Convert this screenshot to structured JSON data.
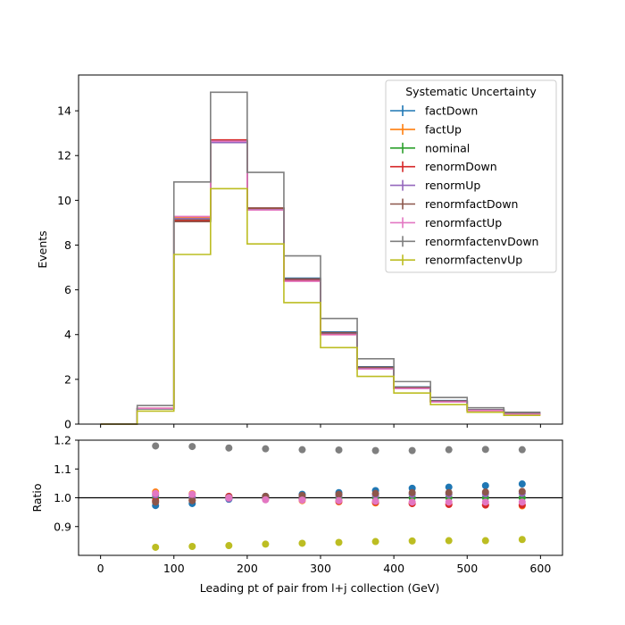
{
  "chart_data": {
    "type": "step",
    "x_bin_edges": [
      0,
      50,
      100,
      150,
      200,
      250,
      300,
      350,
      400,
      450,
      500,
      550,
      600
    ],
    "xlabel": "Leading pt of pair from l+j collection (GeV)",
    "xlim": [
      -30,
      630
    ],
    "xticks": [
      0,
      100,
      200,
      300,
      400,
      500,
      600
    ],
    "legend": {
      "title": "Systematic Uncertainty",
      "position": "upper right"
    },
    "top": {
      "ylabel": "Events",
      "ylim": [
        0,
        15.6
      ],
      "yticks": [
        0,
        2,
        4,
        6,
        8,
        10,
        12,
        14
      ],
      "series": [
        {
          "name": "factDown",
          "color": "#1f77b4",
          "values": [
            0,
            0.68,
            9.05,
            12.6,
            9.62,
            6.52,
            4.12,
            2.56,
            1.66,
            1.05,
            0.64,
            0.47
          ]
        },
        {
          "name": "factUp",
          "color": "#ff7f0e",
          "values": [
            0,
            0.71,
            9.22,
            12.66,
            9.6,
            6.4,
            4.0,
            2.48,
            1.6,
            1.0,
            0.61,
            0.44
          ]
        },
        {
          "name": "nominal",
          "color": "#2ca02c",
          "values": [
            0,
            0.7,
            9.15,
            12.63,
            9.61,
            6.45,
            4.05,
            2.51,
            1.63,
            1.02,
            0.62,
            0.45
          ]
        },
        {
          "name": "renormDown",
          "color": "#d62728",
          "values": [
            0,
            0.69,
            9.1,
            12.7,
            9.65,
            6.42,
            4.01,
            2.47,
            1.59,
            0.99,
            0.6,
            0.44
          ]
        },
        {
          "name": "renormUp",
          "color": "#9467bd",
          "values": [
            0,
            0.7,
            9.18,
            12.58,
            9.58,
            6.47,
            4.07,
            2.53,
            1.64,
            1.03,
            0.63,
            0.46
          ]
        },
        {
          "name": "renormfactDown",
          "color": "#8c564b",
          "values": [
            0,
            0.69,
            9.05,
            12.65,
            9.66,
            6.49,
            4.09,
            2.54,
            1.64,
            1.03,
            0.63,
            0.46
          ]
        },
        {
          "name": "renormfactUp",
          "color": "#e377c2",
          "values": [
            0,
            0.71,
            9.28,
            12.64,
            9.57,
            6.38,
            3.99,
            2.46,
            1.59,
            0.99,
            0.61,
            0.44
          ]
        },
        {
          "name": "renormfactenvDown",
          "color": "#7f7f7f",
          "values": [
            0,
            0.83,
            10.82,
            14.83,
            11.25,
            7.52,
            4.72,
            2.92,
            1.9,
            1.19,
            0.73,
            0.53
          ]
        },
        {
          "name": "renormfactenvUp",
          "color": "#bcbd22",
          "values": [
            0,
            0.58,
            7.58,
            10.52,
            8.05,
            5.43,
            3.42,
            2.13,
            1.39,
            0.87,
            0.53,
            0.39
          ]
        }
      ]
    },
    "ratio": {
      "ylabel": "Ratio",
      "ylim": [
        0.8,
        1.2
      ],
      "yticks": [
        0.9,
        1.0,
        1.1,
        1.2
      ],
      "reference_line": 1.0,
      "x_points": [
        75,
        125,
        175,
        225,
        275,
        325,
        375,
        425,
        475,
        525,
        575
      ],
      "series": [
        {
          "name": "factDown",
          "values": [
            0.973,
            0.98,
            0.995,
            1.005,
            1.012,
            1.018,
            1.025,
            1.033,
            1.037,
            1.042,
            1.048
          ]
        },
        {
          "name": "factUp",
          "values": [
            1.02,
            1.014,
            1.003,
            0.995,
            0.99,
            0.986,
            0.982,
            0.98,
            0.977,
            0.975,
            0.972
          ]
        },
        {
          "name": "nominal",
          "values": [
            1.0,
            1.0,
            1.0,
            1.0,
            1.0,
            1.0,
            1.0,
            1.0,
            1.0,
            1.0,
            1.0
          ]
        },
        {
          "name": "renormDown",
          "values": [
            0.99,
            0.992,
            1.005,
            1.003,
            0.995,
            0.988,
            0.985,
            0.98,
            0.977,
            0.975,
            0.975
          ]
        },
        {
          "name": "renormUp",
          "values": [
            1.01,
            1.004,
            0.997,
            0.997,
            1.004,
            1.008,
            1.01,
            1.012,
            1.012,
            1.014,
            1.015
          ]
        },
        {
          "name": "renormfactDown",
          "values": [
            0.985,
            0.99,
            1.002,
            1.005,
            1.008,
            1.012,
            1.015,
            1.018,
            1.018,
            1.02,
            1.022
          ]
        },
        {
          "name": "renormfactUp",
          "values": [
            1.015,
            1.012,
            1.0,
            0.993,
            0.992,
            0.99,
            0.988,
            0.985,
            0.985,
            0.985,
            0.985
          ]
        },
        {
          "name": "renormfactenvDown",
          "values": [
            1.18,
            1.178,
            1.173,
            1.17,
            1.167,
            1.166,
            1.164,
            1.164,
            1.167,
            1.168,
            1.167
          ]
        },
        {
          "name": "renormfactenvUp",
          "values": [
            0.828,
            0.831,
            0.834,
            0.839,
            0.842,
            0.845,
            0.848,
            0.85,
            0.851,
            0.851,
            0.855
          ]
        }
      ]
    }
  }
}
